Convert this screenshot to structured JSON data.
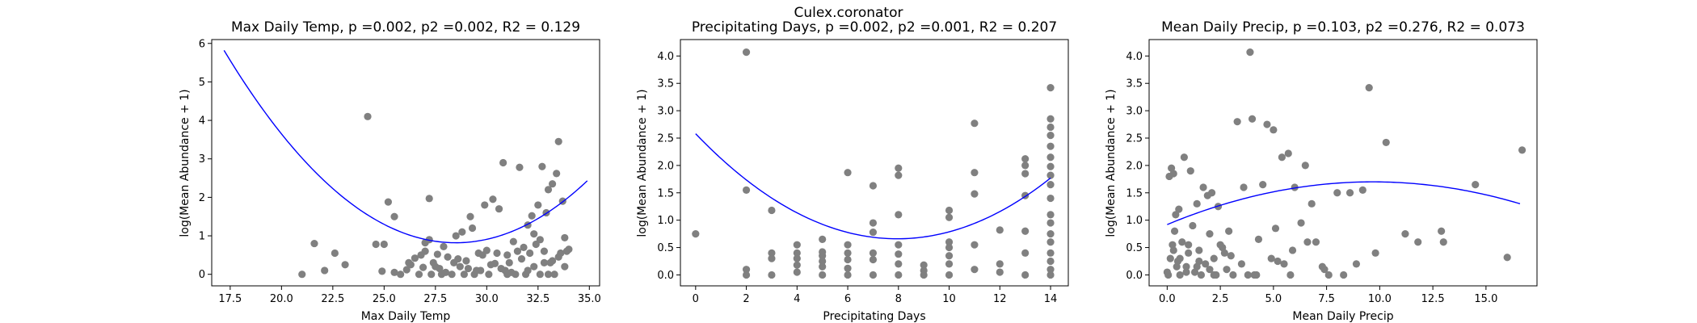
{
  "figure": {
    "suptitle": "Culex.coronator",
    "point_color": "#808080",
    "fit_color": "#0000ff"
  },
  "chart_data": [
    {
      "type": "scatter",
      "title": "Max Daily Temp, p =0.002, p2 =0.002, R2 = 0.129",
      "xlabel": "Max Daily Temp",
      "ylabel": "log(Mean Abundance + 1)",
      "xlim": [
        16.6,
        35.5
      ],
      "ylim": [
        -0.3,
        6.1
      ],
      "xticks": [
        17.5,
        20.0,
        22.5,
        25.0,
        27.5,
        30.0,
        32.5,
        35.0
      ],
      "xtick_labels": [
        "17.5",
        "20.0",
        "22.5",
        "25.0",
        "27.5",
        "30.0",
        "32.5",
        "35.0"
      ],
      "yticks": [
        0,
        1,
        2,
        3,
        4,
        5,
        6
      ],
      "ytick_labels": [
        "0",
        "1",
        "2",
        "3",
        "4",
        "5",
        "6"
      ],
      "fit": {
        "type": "quadratic",
        "x": [
          17.2,
          28.5,
          34.9
        ],
        "y": [
          5.82,
          0.82,
          2.43
        ]
      },
      "points": {
        "x": [
          21.0,
          21.6,
          22.1,
          22.6,
          23.1,
          24.2,
          24.6,
          24.9,
          25.2,
          25.5,
          25.8,
          26.1,
          26.3,
          26.5,
          26.7,
          26.9,
          27.0,
          27.2,
          27.3,
          27.4,
          27.6,
          27.8,
          27.9,
          28.1,
          28.3,
          28.5,
          28.7,
          28.9,
          29.0,
          29.2,
          29.4,
          29.6,
          29.7,
          29.9,
          30.0,
          30.1,
          30.3,
          30.4,
          30.6,
          30.8,
          31.0,
          31.1,
          31.3,
          31.4,
          31.6,
          31.7,
          31.9,
          32.0,
          32.1,
          32.2,
          32.3,
          32.4,
          32.5,
          32.6,
          32.7,
          32.8,
          32.9,
          33.0,
          33.1,
          33.2,
          33.3,
          33.4,
          33.5,
          33.6,
          33.7,
          33.8,
          33.9,
          34.0,
          25.0,
          25.5,
          26.2,
          27.0,
          27.5,
          28.0,
          28.6,
          29.1,
          29.8,
          30.2,
          30.9,
          31.5,
          32.0,
          32.6,
          33.2,
          33.8,
          26.8,
          27.7,
          28.4,
          29.5,
          30.5,
          31.2,
          31.8,
          32.8,
          33.5,
          29.3,
          30.7,
          32.3,
          33.0,
          27.2,
          28.8,
          31.0
        ],
        "y": [
          0.0,
          0.8,
          0.1,
          0.55,
          0.25,
          4.1,
          0.78,
          0.08,
          1.88,
          1.5,
          0.0,
          0.12,
          0.25,
          0.42,
          0.0,
          0.18,
          0.6,
          1.97,
          0.0,
          0.3,
          0.52,
          0.0,
          0.72,
          0.45,
          0.0,
          1.0,
          0.2,
          0.0,
          0.35,
          1.5,
          0.0,
          0.55,
          0.1,
          1.8,
          0.62,
          0.0,
          1.95,
          0.28,
          1.7,
          2.9,
          0.0,
          0.3,
          0.85,
          0.0,
          2.78,
          0.4,
          0.0,
          1.28,
          0.55,
          1.52,
          0.2,
          0.78,
          1.8,
          0.0,
          2.8,
          0.6,
          1.6,
          2.2,
          0.3,
          2.35,
          0.0,
          2.62,
          3.45,
          0.55,
          1.9,
          0.95,
          0.6,
          0.65,
          0.78,
          0.05,
          0.3,
          0.82,
          0.2,
          0.05,
          0.4,
          0.15,
          0.5,
          0.25,
          0.1,
          0.6,
          0.1,
          0.9,
          0.35,
          0.2,
          0.5,
          0.15,
          0.3,
          0.1,
          0.55,
          0.05,
          0.7,
          0.3,
          0.45,
          1.2,
          0.15,
          1.05,
          0.0,
          0.9,
          1.1,
          0.5
        ]
      }
    },
    {
      "type": "scatter",
      "title": "Precipitating Days, p =0.002, p2 =0.001, R2 = 0.207",
      "xlabel": "Precipitating Days",
      "ylabel": "log(Mean Abundance + 1)",
      "xlim": [
        -0.6,
        14.7
      ],
      "ylim": [
        -0.2,
        4.3
      ],
      "xticks": [
        0,
        2,
        4,
        6,
        8,
        10,
        12,
        14
      ],
      "xtick_labels": [
        "0",
        "2",
        "4",
        "6",
        "8",
        "10",
        "12",
        "14"
      ],
      "yticks": [
        0.0,
        0.5,
        1.0,
        1.5,
        2.0,
        2.5,
        3.0,
        3.5,
        4.0
      ],
      "ytick_labels": [
        "0.0",
        "0.5",
        "1.0",
        "1.5",
        "2.0",
        "2.5",
        "3.0",
        "3.5",
        "4.0"
      ],
      "fit": {
        "type": "quadratic",
        "x": [
          0,
          7.94,
          14
        ],
        "y": [
          2.58,
          0.66,
          1.77
        ]
      },
      "points": {
        "x": [
          0,
          2,
          2,
          2,
          2,
          3,
          3,
          3,
          3,
          4,
          4,
          4,
          4,
          4,
          5,
          5,
          5,
          5,
          5,
          5,
          6,
          6,
          6,
          6,
          6,
          6,
          7,
          7,
          7,
          7,
          7,
          7,
          8,
          8,
          8,
          8,
          8,
          8,
          8,
          9,
          9,
          9,
          10,
          10,
          10,
          10,
          10,
          10,
          10,
          11,
          11,
          11,
          11,
          11,
          12,
          12,
          12,
          13,
          13,
          13,
          13,
          13,
          13,
          13,
          14,
          14,
          14,
          14,
          14,
          14,
          14,
          14,
          14,
          14,
          14,
          14,
          14,
          14,
          14,
          14,
          14,
          14
        ],
        "y": [
          0.75,
          4.07,
          1.55,
          0.1,
          0.0,
          1.18,
          0.4,
          0.3,
          0.0,
          0.55,
          0.4,
          0.3,
          0.18,
          0.05,
          0.65,
          0.42,
          0.35,
          0.25,
          0.15,
          0.0,
          1.87,
          0.55,
          0.4,
          0.28,
          0.12,
          0.0,
          1.63,
          0.95,
          0.78,
          0.4,
          0.28,
          0.0,
          1.95,
          1.82,
          1.1,
          0.55,
          0.38,
          0.2,
          0.0,
          0.18,
          0.08,
          0.0,
          1.18,
          1.05,
          0.6,
          0.5,
          0.35,
          0.2,
          0.0,
          2.77,
          1.87,
          1.48,
          0.55,
          0.1,
          0.82,
          0.2,
          0.05,
          2.12,
          2.0,
          1.85,
          1.45,
          0.8,
          0.4,
          0.0,
          3.42,
          2.85,
          2.7,
          2.55,
          2.35,
          2.15,
          1.98,
          1.82,
          1.65,
          1.4,
          1.1,
          0.95,
          0.75,
          0.6,
          0.4,
          0.25,
          0.1,
          0.0
        ]
      }
    },
    {
      "type": "scatter",
      "title": "Mean Daily Precip, p =0.103, p2 =0.276, R2 = 0.073",
      "xlabel": "Mean Daily Precip",
      "ylabel": "log(Mean Abundance + 1)",
      "xlim": [
        -0.85,
        17.4
      ],
      "ylim": [
        -0.2,
        4.3
      ],
      "xticks": [
        0.0,
        2.5,
        5.0,
        7.5,
        10.0,
        12.5,
        15.0
      ],
      "xtick_labels": [
        "0.0",
        "2.5",
        "5.0",
        "7.5",
        "10.0",
        "12.5",
        "15.0"
      ],
      "yticks": [
        0.0,
        0.5,
        1.0,
        1.5,
        2.0,
        2.5,
        3.0,
        3.5,
        4.0
      ],
      "ytick_labels": [
        "0.0",
        "0.5",
        "1.0",
        "1.5",
        "2.0",
        "2.5",
        "3.0",
        "3.5",
        "4.0"
      ],
      "fit": {
        "type": "quadratic",
        "x": [
          0.0,
          9.8,
          16.6
        ],
        "y": [
          0.92,
          1.7,
          1.3
        ]
      },
      "points": {
        "x": [
          0.0,
          0.1,
          0.15,
          0.2,
          0.25,
          0.3,
          0.35,
          0.4,
          0.5,
          0.55,
          0.6,
          0.7,
          0.8,
          0.9,
          1.0,
          1.1,
          1.2,
          1.3,
          1.4,
          1.5,
          1.6,
          1.7,
          1.8,
          1.9,
          2.0,
          2.1,
          2.2,
          2.3,
          2.4,
          2.5,
          2.7,
          2.9,
          3.1,
          3.3,
          3.5,
          3.6,
          3.8,
          3.9,
          4.0,
          4.1,
          4.3,
          4.5,
          4.7,
          4.9,
          5.0,
          5.2,
          5.4,
          5.5,
          5.7,
          5.8,
          6.0,
          6.3,
          6.5,
          6.8,
          7.0,
          7.3,
          7.6,
          8.0,
          8.3,
          8.6,
          8.9,
          9.2,
          9.5,
          9.8,
          10.3,
          11.2,
          11.8,
          12.9,
          13.0,
          14.5,
          16.0,
          16.7,
          0.3,
          0.6,
          1.0,
          1.4,
          2.0,
          2.6,
          3.0,
          4.2,
          5.1,
          5.9,
          6.6,
          7.4,
          0.05,
          0.45,
          0.9,
          1.5,
          2.2,
          2.8
        ],
        "y": [
          0.05,
          1.8,
          0.3,
          1.95,
          0.55,
          1.85,
          0.8,
          1.1,
          0.25,
          1.2,
          0.0,
          0.6,
          2.15,
          0.15,
          0.4,
          1.9,
          0.9,
          0.05,
          1.3,
          0.45,
          0.0,
          1.6,
          0.2,
          1.45,
          0.75,
          1.5,
          0.3,
          0.0,
          1.25,
          0.55,
          0.4,
          0.8,
          0.0,
          2.8,
          0.2,
          1.6,
          0.0,
          4.07,
          2.85,
          0.0,
          0.65,
          1.65,
          2.75,
          0.3,
          2.65,
          0.25,
          2.15,
          0.2,
          2.22,
          0.0,
          1.6,
          0.95,
          2.0,
          1.3,
          0.6,
          0.15,
          0.0,
          1.5,
          0.0,
          1.5,
          0.2,
          1.55,
          3.42,
          0.4,
          2.42,
          0.75,
          0.6,
          0.8,
          0.6,
          1.65,
          0.32,
          2.28,
          0.45,
          0.3,
          0.55,
          0.15,
          0.1,
          0.5,
          0.35,
          0.0,
          0.85,
          0.45,
          0.6,
          0.1,
          0.0,
          0.15,
          0.05,
          0.25,
          0.0,
          0.1
        ]
      }
    }
  ]
}
